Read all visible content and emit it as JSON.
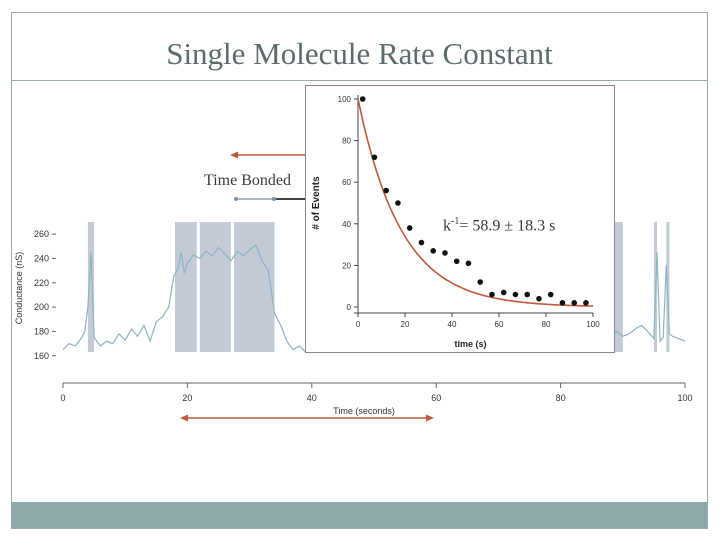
{
  "slide": {
    "title": "Single Molecule Rate Constant",
    "annotation_time_bonded": "Time Bonded",
    "annotation_rate_prefix": "k",
    "annotation_rate_exponent": "-1",
    "annotation_rate_value": "= 58.9 ± 18.3 s"
  },
  "colors": {
    "trace": "#8fb4bd",
    "highlight": "#c5cbd6",
    "arrow": "#c0583e",
    "fit": "#c0583e",
    "footer": "#8fa9aa"
  },
  "chart_data": [
    {
      "type": "line",
      "title": "",
      "xlabel": "Time (seconds)",
      "ylabel": "Conductance (nS)",
      "xlim": [
        0,
        100
      ],
      "ylim": [
        145,
        270
      ],
      "xticks": [
        0,
        20,
        40,
        60,
        80,
        100
      ],
      "yticks": [
        160,
        180,
        200,
        220,
        240,
        260
      ],
      "grid": false,
      "highlight_intervals": [
        [
          4,
          5
        ],
        [
          18,
          21.5
        ],
        [
          22,
          27
        ],
        [
          27.5,
          34
        ],
        [
          81.5,
          84
        ],
        [
          88,
          90
        ],
        [
          95,
          95.5
        ],
        [
          97,
          97.5
        ]
      ],
      "series": [
        {
          "x": [
            0,
            1,
            2,
            3,
            3.5,
            4,
            4.5,
            5,
            6,
            7,
            8,
            9,
            10,
            11,
            12,
            13,
            14,
            15,
            16,
            17,
            17.8,
            18.5,
            19,
            19.5,
            20,
            21,
            22,
            23,
            24,
            25,
            26,
            27,
            28,
            29,
            30,
            31,
            32,
            33,
            34,
            35,
            36,
            37,
            38,
            39,
            40,
            41,
            42,
            43,
            44,
            45,
            46,
            47,
            48,
            49,
            50,
            51,
            52,
            53,
            54,
            55,
            56,
            57,
            58,
            59,
            60,
            61,
            62,
            63,
            64,
            65,
            66,
            67,
            68,
            69,
            70,
            71,
            72,
            73,
            74,
            75,
            76,
            77,
            78,
            79,
            80,
            81,
            82,
            83,
            84,
            85,
            86,
            87,
            88,
            89,
            90,
            91,
            92,
            93,
            94,
            95,
            95.5,
            96,
            96.5,
            97,
            97.5,
            98,
            99,
            100
          ],
          "y": [
            165,
            170,
            168,
            175,
            180,
            200,
            245,
            175,
            168,
            172,
            170,
            178,
            173,
            182,
            176,
            185,
            172,
            188,
            192,
            200,
            225,
            232,
            245,
            228,
            236,
            243,
            240,
            246,
            242,
            249,
            244,
            238,
            246,
            242,
            247,
            251,
            238,
            230,
            195,
            185,
            172,
            165,
            168,
            163,
            166,
            172,
            165,
            168,
            170,
            175,
            172,
            178,
            175,
            185,
            180,
            178,
            175,
            182,
            178,
            176,
            174,
            172,
            170,
            168,
            166,
            170,
            164,
            168,
            172,
            166,
            165,
            170,
            168,
            172,
            176,
            168,
            170,
            166,
            172,
            168,
            175,
            170,
            172,
            174,
            168,
            172,
            176,
            170,
            180,
            175,
            188,
            178,
            175,
            180,
            176,
            178,
            182,
            185,
            180,
            174,
            245,
            172,
            175,
            235,
            178,
            176,
            174,
            172
          ]
        }
      ]
    },
    {
      "type": "scatter",
      "title": "",
      "xlabel": "time (s)",
      "ylabel": "# of Events",
      "xlim": [
        0,
        100
      ],
      "ylim": [
        0,
        100
      ],
      "xticks": [
        0,
        20,
        40,
        60,
        80,
        100
      ],
      "yticks": [
        0,
        20,
        40,
        60,
        80,
        100
      ],
      "grid": false,
      "series": [
        {
          "x": [
            2,
            7,
            12,
            17,
            22,
            27,
            32,
            37,
            42,
            47,
            52,
            57,
            62,
            67,
            72,
            77,
            82,
            87,
            92,
            97
          ],
          "y": [
            100,
            72,
            56,
            50,
            38,
            31,
            27,
            26,
            22,
            21,
            12,
            6,
            7,
            6,
            6,
            4,
            6,
            2,
            2,
            2
          ]
        }
      ],
      "fit": {
        "tau": 18.5,
        "amplitude": 100,
        "offset": 0
      }
    }
  ]
}
